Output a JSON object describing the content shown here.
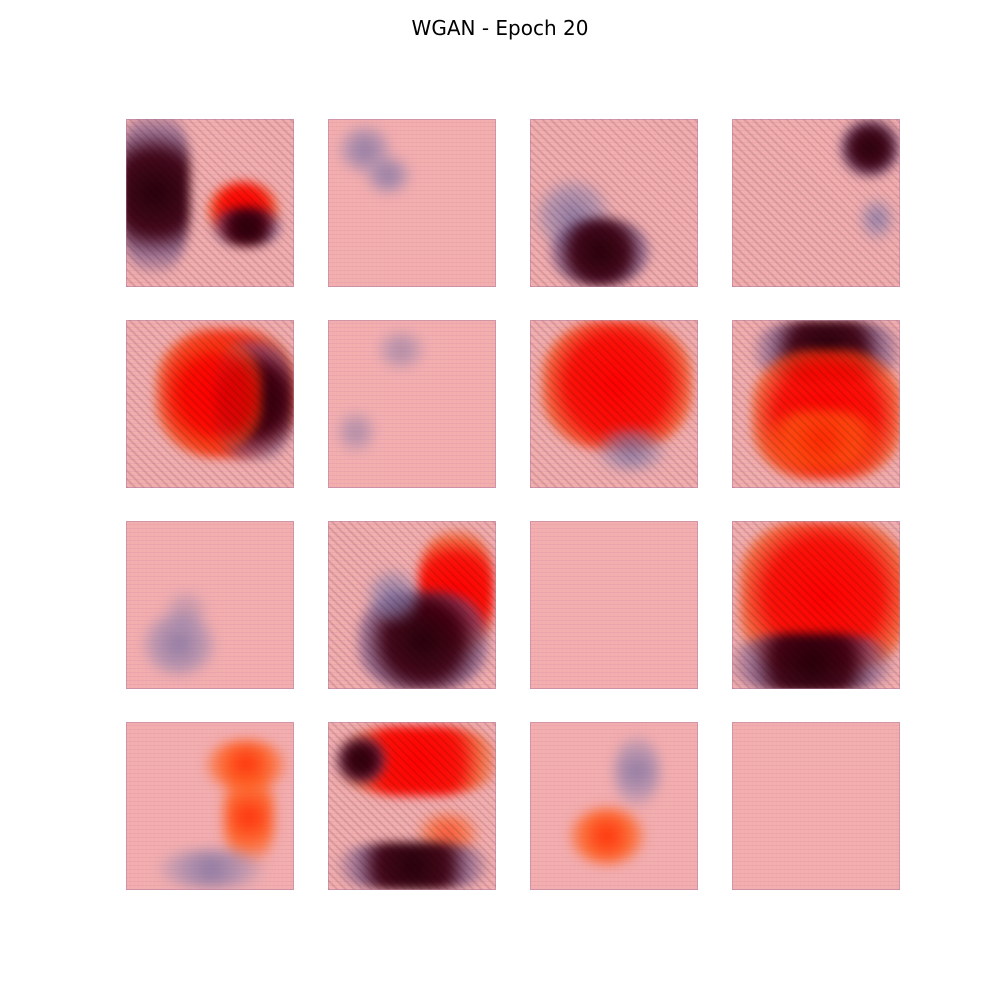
{
  "figure": {
    "title": "WGAN - Epoch 20"
  },
  "grid": {
    "rows": 4,
    "cols": 4,
    "tile_count": 16
  },
  "colors": {
    "background": "#f3aeb0",
    "dark_blob": "#2a000a",
    "red_blob": "#ff0000",
    "haze_blob": "#7a6ea0"
  }
}
